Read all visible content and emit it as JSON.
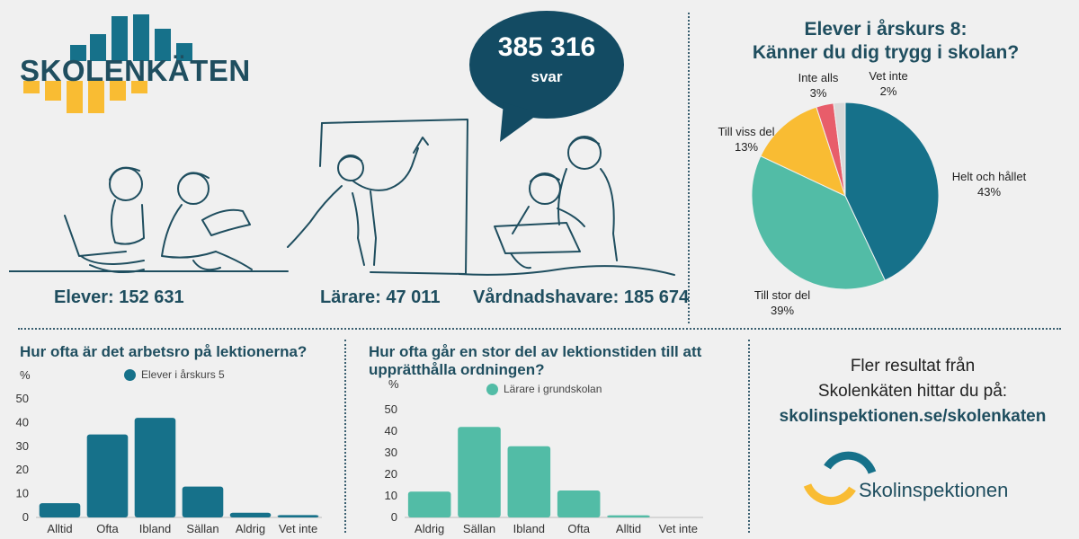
{
  "logo": {
    "text": "SKOLENKÄTEN"
  },
  "bubble": {
    "count": "385 316",
    "label": "svar"
  },
  "respondents": {
    "elever": "Elever: 152 631",
    "larare": "Lärare: 47 011",
    "vardnadshavare": "Vårdnadshavare: 185 674"
  },
  "colors": {
    "teal": "#16718a",
    "mint": "#52bca6",
    "yellow": "#f9bc33",
    "red": "#e85d6a",
    "grey": "#d9d9d9",
    "dark": "#1f4e5f"
  },
  "chart_data": [
    {
      "type": "pie",
      "title_line1": "Elever i årskurs 8:",
      "title_line2": "Känner du dig trygg i skolan?",
      "slices": [
        {
          "label": "Helt och hållet",
          "pct": "43%",
          "value": 43,
          "color": "#16718a"
        },
        {
          "label": "Till stor del",
          "pct": "39%",
          "value": 39,
          "color": "#52bca6"
        },
        {
          "label": "Till viss del",
          "pct": "13%",
          "value": 13,
          "color": "#f9bc33"
        },
        {
          "label": "Inte alls",
          "pct": "3%",
          "value": 3,
          "color": "#e85d6a"
        },
        {
          "label": "Vet inte",
          "pct": "2%",
          "value": 2,
          "color": "#d9d9d9"
        }
      ]
    },
    {
      "type": "bar",
      "title": "Hur ofta är det arbetsro på lektionerna?",
      "ylabel": "%",
      "legend": "Elever i årskurs 5",
      "color": "#16718a",
      "categories": [
        "Alltid",
        "Ofta",
        "Ibland",
        "Sällan",
        "Aldrig",
        "Vet inte"
      ],
      "values": [
        6,
        35,
        42,
        13,
        2,
        1
      ],
      "ylim": [
        0,
        50
      ],
      "yticks": [
        0,
        10,
        20,
        30,
        40,
        50
      ]
    },
    {
      "type": "bar",
      "title": "Hur ofta går en stor del av lektionstiden till att upprätthålla ordningen?",
      "ylabel": "%",
      "legend": "Lärare i grundskolan",
      "color": "#52bca6",
      "categories": [
        "Aldrig",
        "Sällan",
        "Ibland",
        "Ofta",
        "Alltid",
        "Vet inte"
      ],
      "values": [
        12,
        42,
        33,
        12.5,
        1,
        0
      ],
      "ylim": [
        0,
        50
      ],
      "yticks": [
        0,
        10,
        20,
        30,
        40,
        50
      ]
    }
  ],
  "more": {
    "line1": "Fler resultat från",
    "line2": "Skolenkäten hittar du på:",
    "link": "skolinspektionen.se/skolenkaten"
  },
  "brand": {
    "name": "Skolinspektionen"
  }
}
